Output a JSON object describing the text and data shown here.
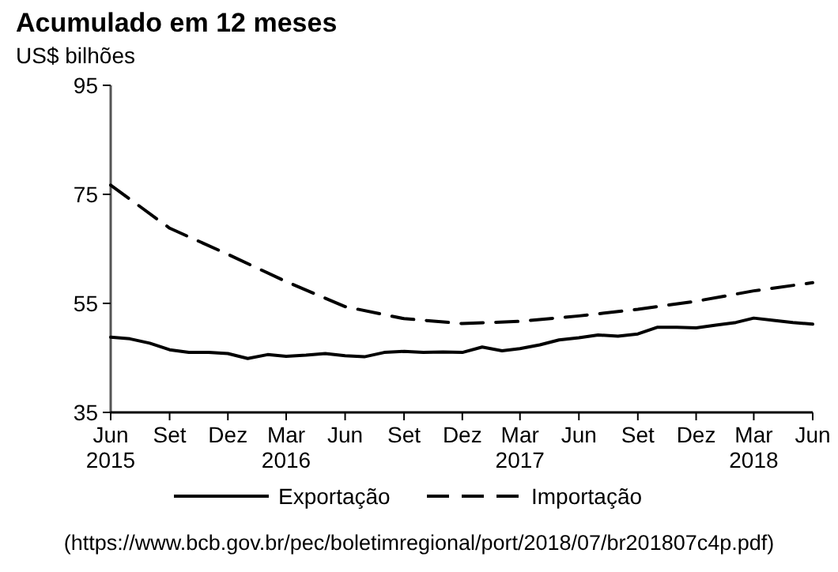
{
  "chart_data": {
    "type": "line",
    "title": "Acumulado em 12 meses",
    "subtitle": "US$ bilhões",
    "x": [
      "2015-06",
      "2015-07",
      "2015-08",
      "2015-09",
      "2015-10",
      "2015-11",
      "2015-12",
      "2016-01",
      "2016-02",
      "2016-03",
      "2016-04",
      "2016-05",
      "2016-06",
      "2016-07",
      "2016-08",
      "2016-09",
      "2016-10",
      "2016-11",
      "2016-12",
      "2017-01",
      "2017-02",
      "2017-03",
      "2017-04",
      "2017-05",
      "2017-06",
      "2017-07",
      "2017-08",
      "2017-09",
      "2017-10",
      "2017-11",
      "2017-12",
      "2018-01",
      "2018-02",
      "2018-03",
      "2018-04",
      "2018-05",
      "2018-06"
    ],
    "series": [
      {
        "name": "Exportação",
        "color": "#000000",
        "line_style": "solid",
        "values": [
          48.8,
          48.5,
          47.7,
          46.5,
          46.0,
          46.0,
          45.8,
          44.9,
          45.6,
          45.3,
          45.5,
          45.8,
          45.4,
          45.2,
          46.0,
          46.2,
          46.0,
          46.1,
          46.0,
          47.0,
          46.3,
          46.7,
          47.4,
          48.3,
          48.7,
          49.2,
          49.0,
          49.4,
          50.6,
          50.6,
          50.5,
          51.0,
          51.5,
          52.3,
          51.9,
          51.5,
          51.2
        ]
      },
      {
        "name": "Importação",
        "color": "#000000",
        "line_style": "dashed",
        "x": [
          "2015-06",
          "2015-09",
          "2015-12",
          "2016-03",
          "2016-06",
          "2016-09",
          "2016-12",
          "2017-03",
          "2017-06",
          "2017-09",
          "2017-12",
          "2018-03",
          "2018-06"
        ],
        "values": [
          76.7,
          68.8,
          64.0,
          59.0,
          54.4,
          52.2,
          51.3,
          51.7,
          52.7,
          53.9,
          55.4,
          57.3,
          58.8
        ]
      }
    ],
    "xlim": [
      "2015-06",
      "2018-06"
    ],
    "xticks": [
      {
        "value": "2015-06",
        "label": "Jun\n2015"
      },
      {
        "value": "2015-09",
        "label": "Set"
      },
      {
        "value": "2015-12",
        "label": "Dez"
      },
      {
        "value": "2016-03",
        "label": "Mar\n2016"
      },
      {
        "value": "2016-06",
        "label": "Jun"
      },
      {
        "value": "2016-09",
        "label": "Set"
      },
      {
        "value": "2016-12",
        "label": "Dez"
      },
      {
        "value": "2017-03",
        "label": "Mar\n2017"
      },
      {
        "value": "2017-06",
        "label": "Jun"
      },
      {
        "value": "2017-09",
        "label": "Set"
      },
      {
        "value": "2017-12",
        "label": "Dez"
      },
      {
        "value": "2018-03",
        "label": "Mar\n2018"
      },
      {
        "value": "2018-06",
        "label": "Jun"
      }
    ],
    "ylim": [
      35,
      95
    ],
    "yticks": [
      35,
      55,
      75,
      95
    ],
    "legend": "bottom",
    "annotations": [
      "(https://www.bcb.gov.br/pec/boletimregional/port/2018/07/br201807c4p.pdf)"
    ]
  }
}
